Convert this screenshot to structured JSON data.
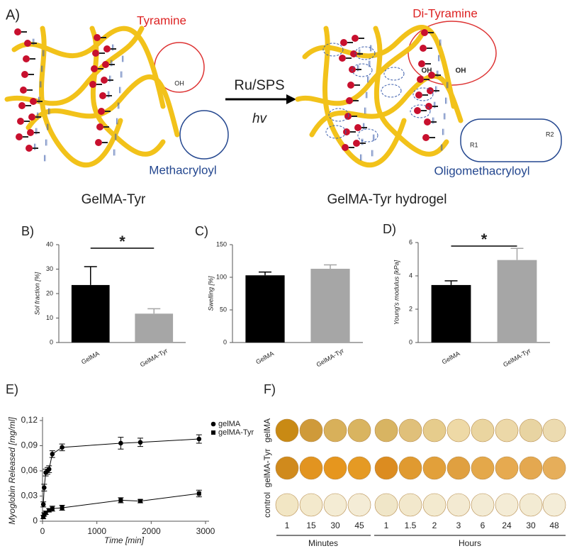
{
  "panel_a": {
    "label": "A)",
    "tyramine": "Tyramine",
    "methacryloyl": "Methacryloyl",
    "left_title": "GelMA-Tyr",
    "reagent": "Ru/SPS",
    "light": "hv",
    "di_tyramine": "Di-Tyramine",
    "oligomethacryloyl": "Oligomethacryloyl",
    "right_title": "GelMA-Tyr hydrogel",
    "oh": "OH",
    "r1": "R1",
    "r2": "R2"
  },
  "chart_data": [
    {
      "type": "bar",
      "panel": "B)",
      "y_label": "Sol fraction [%]",
      "categories": [
        "GelMA",
        "GelMA-Tyr"
      ],
      "values": [
        23.5,
        11.8
      ],
      "errors": [
        7.5,
        2
      ],
      "colors": [
        "#000000",
        "#a6a6a6"
      ],
      "ylim": [
        0,
        40
      ],
      "yticks": [
        0,
        10,
        20,
        30,
        40
      ],
      "annotation": "*"
    },
    {
      "type": "bar",
      "panel": "C)",
      "y_label": "Swelling [%]",
      "categories": [
        "GelMA",
        "GelMA-Tyr"
      ],
      "values": [
        103,
        113
      ],
      "errors": [
        5,
        6
      ],
      "colors": [
        "#000000",
        "#a6a6a6"
      ],
      "ylim": [
        0,
        150
      ],
      "yticks": [
        0,
        50,
        100,
        150
      ]
    },
    {
      "type": "bar",
      "panel": "D)",
      "y_label": "Young's modulus [kPa]",
      "categories": [
        "GelMA",
        "GelMA-Tyr"
      ],
      "values": [
        3.45,
        4.95
      ],
      "errors": [
        0.25,
        0.7
      ],
      "colors": [
        "#000000",
        "#a6a6a6"
      ],
      "ylim": [
        0,
        6
      ],
      "yticks": [
        0,
        2,
        4,
        6
      ],
      "annotation": "*"
    },
    {
      "type": "line",
      "panel": "E)",
      "x_label": "Time [min]",
      "y_label": "Myoglobin Released [mg/ml]",
      "xlim": [
        0,
        3000
      ],
      "xticks": [
        0,
        1000,
        2000,
        3000
      ],
      "ylim": [
        0,
        0.12
      ],
      "yticks": [
        0,
        {
          "value": 0.03,
          "label": "0,03"
        },
        {
          "value": 0.06,
          "label": "0,06"
        },
        {
          "value": 0.09,
          "label": "0,09"
        },
        {
          "value": 0.12,
          "label": "0,12"
        }
      ],
      "series": [
        {
          "name": "gelMA",
          "color": "#000000",
          "marker": "circle",
          "x": [
            15,
            30,
            60,
            90,
            120,
            180,
            360,
            1440,
            1800,
            2880
          ],
          "values": [
            0.02,
            0.04,
            0.058,
            0.06,
            0.062,
            0.08,
            0.088,
            0.093,
            0.094,
            0.098
          ],
          "errors": [
            0.003,
            0.004,
            0.004,
            0.004,
            0.004,
            0.004,
            0.004,
            0.007,
            0.005,
            0.005
          ]
        },
        {
          "name": "gelMA-Tyr",
          "color": "#000000",
          "marker": "square",
          "x": [
            15,
            30,
            60,
            120,
            180,
            360,
            1440,
            1800,
            2880
          ],
          "values": [
            0.005,
            0.008,
            0.01,
            0.013,
            0.015,
            0.016,
            0.025,
            0.024,
            0.033
          ],
          "errors": [
            0.002,
            0.002,
            0.002,
            0.002,
            0.003,
            0.003,
            0.003,
            0.002,
            0.004
          ]
        }
      ]
    }
  ],
  "panel_f": {
    "label": "F)",
    "rows": [
      "gelMA",
      "gelMA-Tyr",
      "control"
    ],
    "columns": [
      "1",
      "15",
      "30",
      "45",
      "1",
      "1.5",
      "2",
      "3",
      "6",
      "24",
      "30",
      "48"
    ],
    "minutes": "Minutes",
    "hours": "Hours"
  }
}
